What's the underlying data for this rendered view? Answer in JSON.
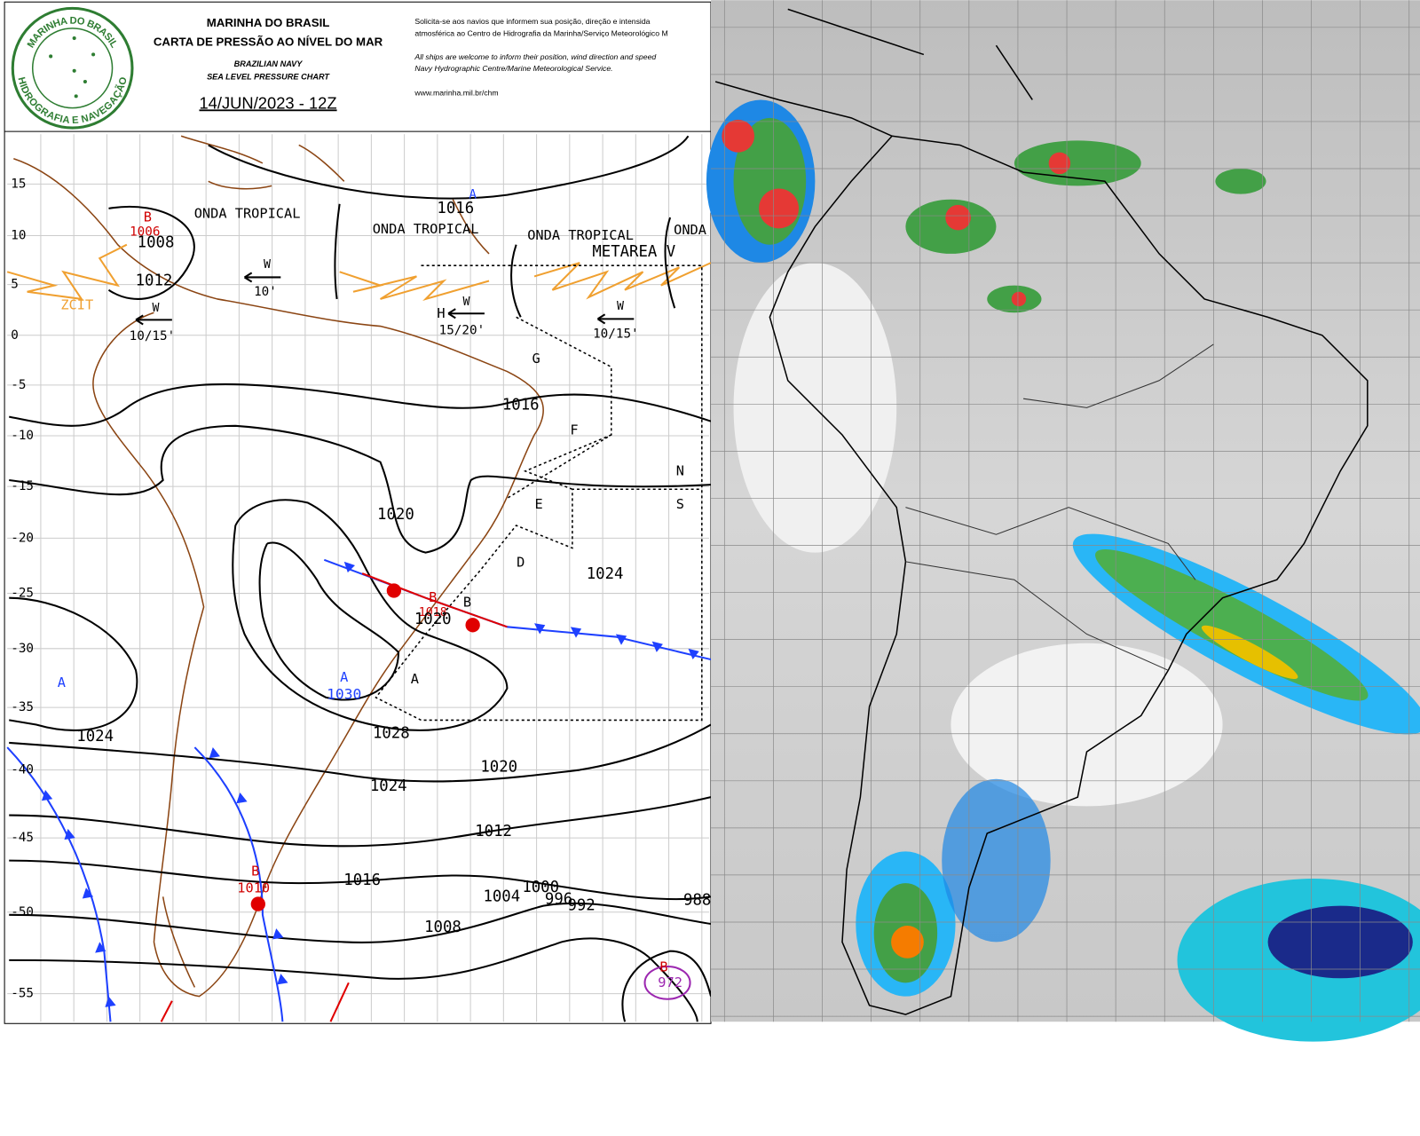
{
  "logo": {
    "top": "MARINHA DO BRASIL",
    "bottom": "HIDROGRAFIA E NAVEGAÇÃO"
  },
  "header": {
    "title": "MARINHA DO BRASIL",
    "subtitle": "CARTA DE PRESSÃO AO NÍVEL DO MAR",
    "title_en": "BRAZILIAN NAVY",
    "subtitle_en": "SEA LEVEL PRESSURE CHART",
    "date": "14/JUN/2023 - 12Z"
  },
  "notice": {
    "pt": [
      "Solicita-se aos navios que informem sua posição, direção e intensida",
      "atmosférica ao Centro de Hidrografia da Marinha/Serviço Meteorológico M"
    ],
    "en": [
      "All ships are welcome to inform their position, wind direction and speed",
      "Navy Hydrographic Centre/Marine Meteorological Service."
    ],
    "url": "www.marinha.mil.br/chm"
  },
  "map": {
    "latitudes": [
      15,
      10,
      5,
      0,
      -5,
      -10,
      -15,
      -20,
      -25,
      -30,
      -35,
      -40,
      -45,
      -50,
      -55
    ],
    "labels": [
      "1016",
      "A",
      "B",
      "1006",
      "1008",
      "ONDA TROPICAL",
      "ONDA TROPICAL",
      "ONDA TROPICAL",
      "ONDA",
      "METAREA V",
      "1012",
      "ZCIT",
      "W",
      "10'",
      "W",
      "10/15'",
      "H",
      "W",
      "15/20'",
      "W",
      "10/15'",
      "G",
      "1016",
      "F",
      "N",
      "E",
      "S",
      "1020",
      "D",
      "1024",
      "B",
      "B",
      "1018",
      "1020",
      "A",
      "A",
      "1030",
      "A",
      "1024",
      "1028",
      "1020",
      "1024",
      "1012",
      "B",
      "1010",
      "1016",
      "1000",
      "1004",
      "996",
      "992",
      "988",
      "1008",
      "B",
      "972"
    ]
  }
}
